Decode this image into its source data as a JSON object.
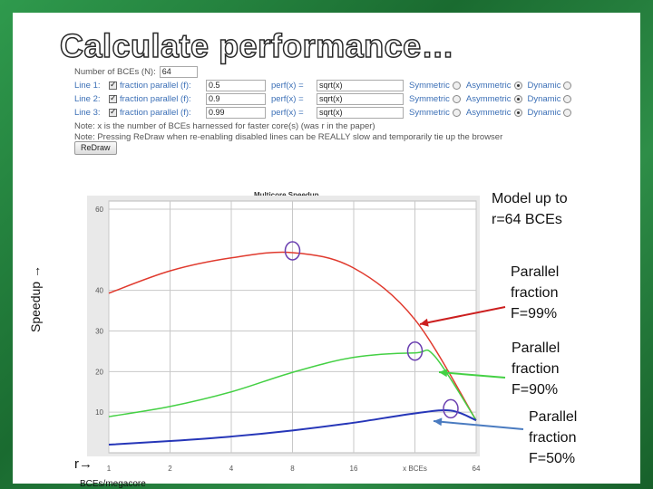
{
  "slide": {
    "title": "Calculate performance…",
    "ylabel": "Speedup →",
    "xlabel": "r→",
    "xsub": "BCEs/megacore"
  },
  "form": {
    "bces_label": "Number of BCEs (N):",
    "bces_value": "64",
    "lines": [
      {
        "label": "Line 1:",
        "fp_label": "fraction parallel (f):",
        "fp_value": "0.5",
        "perf_label": "perf(x) =",
        "perf_value": "sqrt(x)",
        "sym": "Symmetric",
        "asym": "Asymmetric",
        "dyn": "Dynamic"
      },
      {
        "label": "Line 2:",
        "fp_label": "fraction parallel (f):",
        "fp_value": "0.9",
        "perf_label": "perf(x) =",
        "perf_value": "sqrt(x)",
        "sym": "Symmetric",
        "asym": "Asymmetric",
        "dyn": "Dynamic"
      },
      {
        "label": "Line 3:",
        "fp_label": "fraction parallel (f):",
        "fp_value": "0.99",
        "perf_label": "perf(x) =",
        "perf_value": "sqrt(x)",
        "sym": "Symmetric",
        "asym": "Asymmetric",
        "dyn": "Dynamic"
      }
    ],
    "note1": "Note: x is the number of BCEs harnessed for faster core(s) (was r in the paper)",
    "note2": "Note: Pressing ReDraw when re-enabling disabled lines can be REALLY slow and temporarily tie up the browser",
    "redraw_label": "ReDraw"
  },
  "annotations": {
    "model": [
      "Model up to",
      "r=64 BCEs"
    ],
    "f99": [
      "Parallel",
      "fraction",
      "F=99%"
    ],
    "f90": [
      "Parallel",
      "fraction",
      "F=90%"
    ],
    "f50": [
      "Parallel",
      "fraction",
      "F=50%"
    ]
  },
  "colors": {
    "f99": "#e03a2e",
    "f90": "#44d044",
    "f50": "#2636b8",
    "circle": "#6a3fb0"
  },
  "chart_data": {
    "type": "line",
    "title": "Multicore Speedup",
    "xlabel": "x BCEs",
    "ylabel": "",
    "x_scale": "log2",
    "x_ticks": [
      1,
      2,
      4,
      8,
      16,
      32,
      64
    ],
    "x_tick_labels": [
      "1",
      "2",
      "4",
      "8",
      "16",
      "x BCEs",
      "64"
    ],
    "y_ticks": [
      10,
      20,
      30,
      40,
      60
    ],
    "ylim": [
      0,
      62
    ],
    "xlim": [
      1,
      64
    ],
    "grid": true,
    "series": [
      {
        "key": "f99",
        "x": [
          1,
          2,
          4,
          8,
          16,
          32,
          64
        ],
        "y": [
          39.3,
          44.8,
          48.0,
          49.3,
          45.5,
          32.8,
          8.0
        ]
      },
      {
        "key": "f90",
        "x": [
          1,
          2,
          4,
          8,
          16,
          32,
          40,
          64
        ],
        "y": [
          8.9,
          11.4,
          15.0,
          19.8,
          23.5,
          24.6,
          23.8,
          8.0
        ]
      },
      {
        "key": "f50",
        "x": [
          1,
          2,
          4,
          8,
          16,
          32,
          48,
          64
        ],
        "y": [
          2.0,
          2.9,
          4.0,
          5.5,
          7.4,
          9.7,
          10.4,
          8.0
        ]
      }
    ],
    "peaks": [
      {
        "key": "f99",
        "x": 8,
        "y": 49.3
      },
      {
        "key": "f90",
        "x": 32,
        "y": 24.6
      },
      {
        "key": "f50",
        "x": 48,
        "y": 10.4
      }
    ]
  }
}
